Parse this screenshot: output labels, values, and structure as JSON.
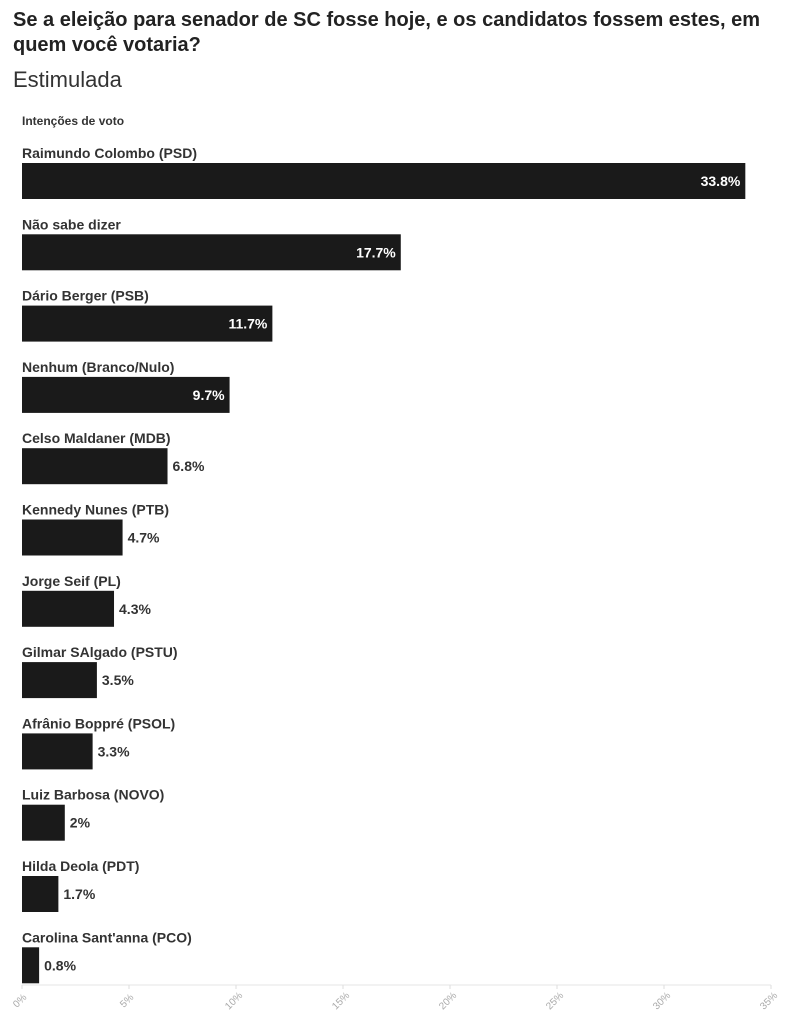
{
  "header": {
    "title": "Se a eleição para senador de SC fosse hoje, e os candidatos fossem estes, em quem você votaria?",
    "subtitle": "Estimulada"
  },
  "chart_data": {
    "type": "bar",
    "orientation": "horizontal",
    "legend_label": "Intenções de voto",
    "categories": [
      "Raimundo Colombo (PSD)",
      "Não sabe dizer",
      "Dário Berger (PSB)",
      "Nenhum (Branco/Nulo)",
      "Celso Maldaner (MDB)",
      "Kennedy Nunes (PTB)",
      "Jorge Seif (PL)",
      "Gilmar SAlgado (PSTU)",
      "Afrânio Boppré (PSOL)",
      "Luiz Barbosa (NOVO)",
      "Hilda Deola (PDT)",
      "Carolina Sant'anna (PCO)"
    ],
    "values": [
      33.8,
      17.7,
      11.7,
      9.7,
      6.8,
      4.7,
      4.3,
      3.5,
      3.3,
      2,
      1.7,
      0.8
    ],
    "value_labels": [
      "33.8%",
      "17.7%",
      "11.7%",
      "9.7%",
      "6.8%",
      "4.7%",
      "4.3%",
      "3.5%",
      "3.3%",
      "2%",
      "1.7%",
      "0.8%"
    ],
    "x_ticks": [
      0,
      5,
      10,
      15,
      20,
      25,
      30,
      35
    ],
    "x_tick_labels": [
      "0%",
      "5%",
      "10%",
      "15%",
      "20%",
      "25%",
      "30%",
      "35%"
    ],
    "xlim": [
      0,
      35
    ],
    "bar_color": "#1a1a1a",
    "grid": false
  }
}
